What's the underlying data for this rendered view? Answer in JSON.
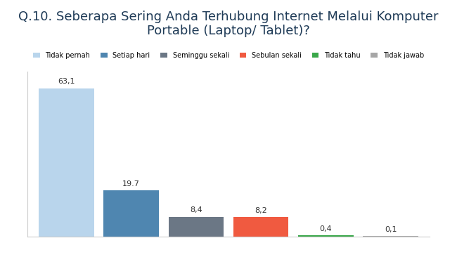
{
  "chart_data": {
    "type": "bar",
    "title": "Q.10. Seberapa Sering Anda Terhubung Internet Melalui Komputer Portable (Laptop/ Tablet)?",
    "categories": [
      "Tidak pernah",
      "Setiap hari",
      "Seminggu sekali",
      "Sebulan sekali",
      "Tidak tahu",
      "Tidak jawab"
    ],
    "values": [
      63.1,
      19.7,
      8.4,
      8.2,
      0.4,
      0.1
    ],
    "value_labels": [
      "63,1",
      "19.7",
      "8,4",
      "8,2",
      "0,4",
      "0,1"
    ],
    "colors": [
      "#b9d5ec",
      "#4f86b0",
      "#6b7785",
      "#f05a40",
      "#3aa84a",
      "#a6a6a6"
    ],
    "ylim": [
      0,
      70
    ],
    "yticks": [],
    "grid": false,
    "legend": "upper center",
    "data_labels": true,
    "tick_labels": false
  }
}
